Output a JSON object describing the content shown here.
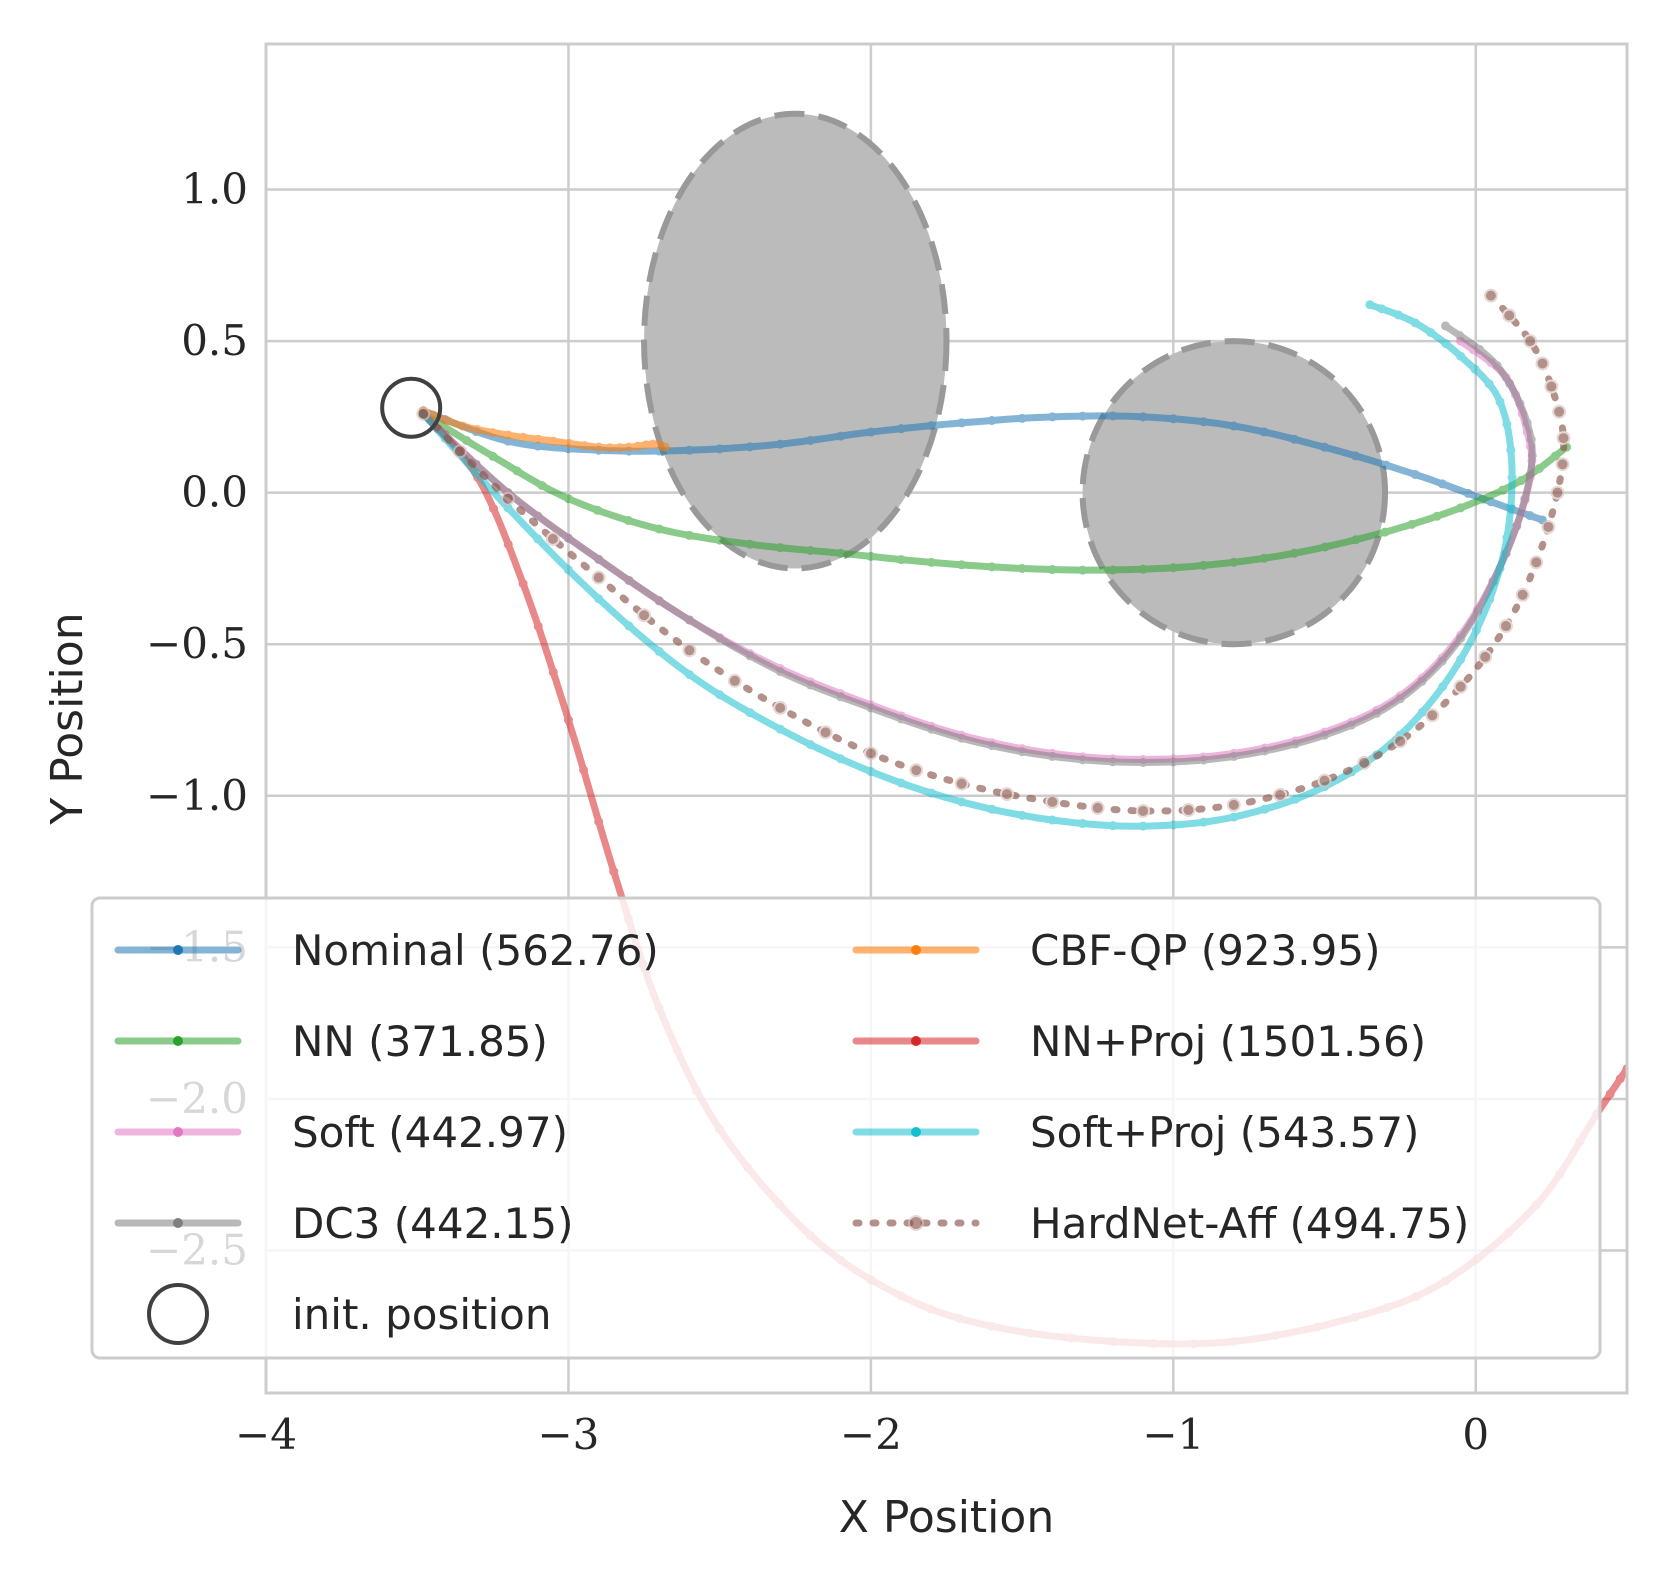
{
  "chart_data": {
    "type": "line",
    "title": "",
    "xlabel": "X Position",
    "ylabel": "Y Position",
    "xlim": [
      -4.0,
      0.5
    ],
    "ylim": [
      -2.97,
      1.48
    ],
    "xticks": [
      -4,
      -3,
      -2,
      -1,
      0
    ],
    "xtick_labels": [
      "−4",
      "−3",
      "−2",
      "−1",
      "0"
    ],
    "yticks": [
      -2.5,
      -2.0,
      -1.5,
      -1.0,
      -0.5,
      0.0,
      0.5,
      1.0
    ],
    "ytick_labels": [
      "−2.5",
      "−2.0",
      "−1.5",
      "−1.0",
      "−0.5",
      "0.0",
      "0.5",
      "1.0"
    ],
    "grid": true,
    "legend_position": "lower-left",
    "legend_columns": 2,
    "init_position": {
      "x": -3.52,
      "y": 0.28,
      "label": "init. position",
      "color": "#404040"
    },
    "obstacles": [
      {
        "cx": -2.25,
        "cy": 0.5,
        "rx": 0.5,
        "ry": 0.75,
        "fill": "#bbbbbb",
        "stroke": "#999999"
      },
      {
        "cx": -0.8,
        "cy": 0.0,
        "rx": 0.5,
        "ry": 0.5,
        "fill": "#bbbbbb",
        "stroke": "#999999"
      }
    ],
    "series": [
      {
        "name": "Nominal (562.76)",
        "color": "#1f77b4",
        "style": "solid",
        "alpha": 0.55,
        "points": [
          [
            -3.48,
            0.27
          ],
          [
            -3.2,
            0.17
          ],
          [
            -2.9,
            0.14
          ],
          [
            -2.6,
            0.14
          ],
          [
            -2.3,
            0.16
          ],
          [
            -2.0,
            0.2
          ],
          [
            -1.7,
            0.23
          ],
          [
            -1.4,
            0.25
          ],
          [
            -1.1,
            0.25
          ],
          [
            -0.8,
            0.22
          ],
          [
            -0.5,
            0.15
          ],
          [
            -0.2,
            0.06
          ],
          [
            0.05,
            -0.03
          ],
          [
            0.22,
            -0.09
          ]
        ]
      },
      {
        "name": "NN (371.85)",
        "color": "#2ca02c",
        "style": "solid",
        "alpha": 0.55,
        "points": [
          [
            -3.48,
            0.26
          ],
          [
            -3.25,
            0.12
          ],
          [
            -3.0,
            -0.02
          ],
          [
            -2.7,
            -0.12
          ],
          [
            -2.4,
            -0.17
          ],
          [
            -2.1,
            -0.2
          ],
          [
            -1.8,
            -0.23
          ],
          [
            -1.5,
            -0.25
          ],
          [
            -1.2,
            -0.255
          ],
          [
            -0.9,
            -0.24
          ],
          [
            -0.6,
            -0.2
          ],
          [
            -0.3,
            -0.13
          ],
          [
            -0.05,
            -0.05
          ],
          [
            0.15,
            0.04
          ],
          [
            0.3,
            0.15
          ]
        ]
      },
      {
        "name": "Soft (442.97)",
        "color": "#e377c2",
        "style": "solid",
        "alpha": 0.55,
        "points": [
          [
            -3.48,
            0.26
          ],
          [
            -3.2,
            0.0
          ],
          [
            -2.9,
            -0.22
          ],
          [
            -2.6,
            -0.42
          ],
          [
            -2.3,
            -0.58
          ],
          [
            -2.0,
            -0.7
          ],
          [
            -1.7,
            -0.8
          ],
          [
            -1.4,
            -0.86
          ],
          [
            -1.1,
            -0.88
          ],
          [
            -0.8,
            -0.86
          ],
          [
            -0.5,
            -0.79
          ],
          [
            -0.25,
            -0.67
          ],
          [
            -0.05,
            -0.47
          ],
          [
            0.1,
            -0.2
          ],
          [
            0.18,
            0.05
          ],
          [
            0.17,
            0.2
          ],
          [
            0.1,
            0.38
          ],
          [
            -0.05,
            0.5
          ]
        ]
      },
      {
        "name": "DC3 (442.15)",
        "color": "#7f7f7f",
        "style": "solid",
        "alpha": 0.55,
        "points": [
          [
            -3.48,
            0.26
          ],
          [
            -3.2,
            0.0
          ],
          [
            -2.9,
            -0.22
          ],
          [
            -2.6,
            -0.42
          ],
          [
            -2.3,
            -0.59
          ],
          [
            -2.0,
            -0.71
          ],
          [
            -1.7,
            -0.81
          ],
          [
            -1.4,
            -0.87
          ],
          [
            -1.1,
            -0.89
          ],
          [
            -0.8,
            -0.87
          ],
          [
            -0.5,
            -0.8
          ],
          [
            -0.25,
            -0.68
          ],
          [
            -0.05,
            -0.48
          ],
          [
            0.1,
            -0.2
          ],
          [
            0.18,
            0.06
          ],
          [
            0.17,
            0.23
          ],
          [
            0.07,
            0.42
          ],
          [
            -0.1,
            0.55
          ]
        ]
      },
      {
        "name": "CBF-QP (923.95)",
        "color": "#ff7f0e",
        "style": "solid",
        "alpha": 0.6,
        "points": [
          [
            -3.48,
            0.27
          ],
          [
            -3.35,
            0.22
          ],
          [
            -3.2,
            0.19
          ],
          [
            -3.05,
            0.17
          ],
          [
            -2.9,
            0.15
          ],
          [
            -2.8,
            0.15
          ],
          [
            -2.72,
            0.16
          ],
          [
            -2.68,
            0.15
          ]
        ]
      },
      {
        "name": "NN+Proj (1501.56)",
        "color": "#d62728",
        "style": "solid",
        "alpha": 0.55,
        "points": [
          [
            -3.48,
            0.26
          ],
          [
            -3.3,
            0.05
          ],
          [
            -3.15,
            -0.3
          ],
          [
            -3.0,
            -0.75
          ],
          [
            -2.85,
            -1.25
          ],
          [
            -2.7,
            -1.7
          ],
          [
            -2.5,
            -2.1
          ],
          [
            -2.2,
            -2.45
          ],
          [
            -1.9,
            -2.65
          ],
          [
            -1.6,
            -2.75
          ],
          [
            -1.2,
            -2.8
          ],
          [
            -0.8,
            -2.8
          ],
          [
            -0.4,
            -2.72
          ],
          [
            -0.1,
            -2.6
          ],
          [
            0.2,
            -2.35
          ],
          [
            0.4,
            -2.05
          ],
          [
            0.5,
            -1.9
          ]
        ]
      },
      {
        "name": "Soft+Proj (543.57)",
        "color": "#17becf",
        "style": "solid",
        "alpha": 0.55,
        "points": [
          [
            -3.48,
            0.26
          ],
          [
            -3.2,
            -0.05
          ],
          [
            -2.9,
            -0.35
          ],
          [
            -2.6,
            -0.6
          ],
          [
            -2.3,
            -0.78
          ],
          [
            -2.0,
            -0.92
          ],
          [
            -1.7,
            -1.02
          ],
          [
            -1.4,
            -1.08
          ],
          [
            -1.1,
            -1.1
          ],
          [
            -0.8,
            -1.07
          ],
          [
            -0.5,
            -0.97
          ],
          [
            -0.25,
            -0.8
          ],
          [
            -0.05,
            -0.55
          ],
          [
            0.08,
            -0.25
          ],
          [
            0.12,
            0.05
          ],
          [
            0.08,
            0.3
          ],
          [
            -0.05,
            0.45
          ],
          [
            -0.2,
            0.56
          ],
          [
            -0.35,
            0.62
          ]
        ]
      },
      {
        "name": "HardNet-Aff (494.75)",
        "color": "#8c564b",
        "style": "dotted",
        "alpha": 0.65,
        "points": [
          [
            -3.48,
            0.26
          ],
          [
            -3.2,
            -0.02
          ],
          [
            -2.9,
            -0.28
          ],
          [
            -2.6,
            -0.52
          ],
          [
            -2.3,
            -0.71
          ],
          [
            -2.0,
            -0.86
          ],
          [
            -1.7,
            -0.96
          ],
          [
            -1.4,
            -1.02
          ],
          [
            -1.1,
            -1.05
          ],
          [
            -0.8,
            -1.03
          ],
          [
            -0.5,
            -0.95
          ],
          [
            -0.25,
            -0.82
          ],
          [
            -0.05,
            -0.64
          ],
          [
            0.1,
            -0.44
          ],
          [
            0.2,
            -0.23
          ],
          [
            0.27,
            0.0
          ],
          [
            0.29,
            0.18
          ],
          [
            0.25,
            0.35
          ],
          [
            0.18,
            0.5
          ],
          [
            0.05,
            0.65
          ]
        ]
      }
    ]
  }
}
